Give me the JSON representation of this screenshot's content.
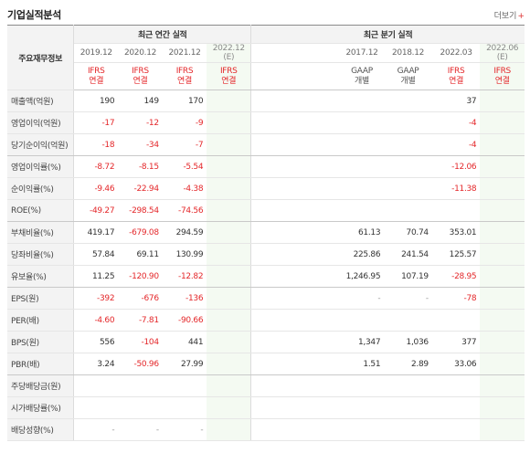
{
  "section_title": "기업실적분석",
  "more_link": "더보기",
  "more_icon": "+",
  "header": {
    "row_label": "주요재무정보",
    "annual_group": "최근 연간 실적",
    "quarter_group": "최근 분기 실적",
    "periods": [
      {
        "date": "2019.12",
        "est": "",
        "std": "IFRS",
        "basis": "연결",
        "std_kind": "ifrs"
      },
      {
        "date": "2020.12",
        "est": "",
        "std": "IFRS",
        "basis": "연결",
        "std_kind": "ifrs"
      },
      {
        "date": "2021.12",
        "est": "",
        "std": "IFRS",
        "basis": "연결",
        "std_kind": "ifrs"
      },
      {
        "date": "2022.12",
        "est": "(E)",
        "std": "IFRS",
        "basis": "연결",
        "std_kind": "ifrs"
      },
      {
        "date": "",
        "est": "",
        "std": "",
        "basis": "",
        "std_kind": ""
      },
      {
        "date": "",
        "est": "",
        "std": "",
        "basis": "",
        "std_kind": ""
      },
      {
        "date": "2017.12",
        "est": "",
        "std": "GAAP",
        "basis": "개별",
        "std_kind": "gaap"
      },
      {
        "date": "2018.12",
        "est": "",
        "std": "GAAP",
        "basis": "개별",
        "std_kind": "gaap"
      },
      {
        "date": "2022.03",
        "est": "",
        "std": "IFRS",
        "basis": "연결",
        "std_kind": "ifrs"
      },
      {
        "date": "2022.06",
        "est": "(E)",
        "std": "IFRS",
        "basis": "연결",
        "std_kind": "ifrs"
      }
    ]
  },
  "rows": [
    {
      "label": "매출액(억원)",
      "values": [
        "190",
        "149",
        "170",
        "",
        "",
        "",
        "",
        "",
        "37",
        ""
      ]
    },
    {
      "label": "영업이익(억원)",
      "values": [
        "-17",
        "-12",
        "-9",
        "",
        "",
        "",
        "",
        "",
        "-4",
        ""
      ]
    },
    {
      "label": "당기순이익(억원)",
      "values": [
        "-18",
        "-34",
        "-7",
        "",
        "",
        "",
        "",
        "",
        "-4",
        ""
      ]
    },
    {
      "label": "영업이익률(%)",
      "values": [
        "-8.72",
        "-8.15",
        "-5.54",
        "",
        "",
        "",
        "",
        "",
        "-12.06",
        ""
      ]
    },
    {
      "label": "순이익률(%)",
      "values": [
        "-9.46",
        "-22.94",
        "-4.38",
        "",
        "",
        "",
        "",
        "",
        "-11.38",
        ""
      ]
    },
    {
      "label": "ROE(%)",
      "values": [
        "-49.27",
        "-298.54",
        "-74.56",
        "",
        "",
        "",
        "",
        "",
        "",
        ""
      ]
    },
    {
      "label": "부채비율(%)",
      "values": [
        "419.17",
        "-679.08",
        "294.59",
        "",
        "",
        "",
        "61.13",
        "70.74",
        "353.01",
        ""
      ]
    },
    {
      "label": "당좌비율(%)",
      "values": [
        "57.84",
        "69.11",
        "130.99",
        "",
        "",
        "",
        "225.86",
        "241.54",
        "125.57",
        ""
      ]
    },
    {
      "label": "유보율(%)",
      "values": [
        "11.25",
        "-120.90",
        "-12.82",
        "",
        "",
        "",
        "1,246.95",
        "107.19",
        "-28.95",
        ""
      ]
    },
    {
      "label": "EPS(원)",
      "values": [
        "-392",
        "-676",
        "-136",
        "",
        "",
        "",
        "-",
        "-",
        "-78",
        ""
      ]
    },
    {
      "label": "PER(배)",
      "values": [
        "-4.60",
        "-7.81",
        "-90.66",
        "",
        "",
        "",
        "",
        "",
        "",
        ""
      ]
    },
    {
      "label": "BPS(원)",
      "values": [
        "556",
        "-104",
        "441",
        "",
        "",
        "",
        "1,347",
        "1,036",
        "377",
        ""
      ]
    },
    {
      "label": "PBR(배)",
      "values": [
        "3.24",
        "-50.96",
        "27.99",
        "",
        "",
        "",
        "1.51",
        "2.89",
        "33.06",
        ""
      ]
    },
    {
      "label": "주당배당금(원)",
      "values": [
        "",
        "",
        "",
        "",
        "",
        "",
        "",
        "",
        "",
        ""
      ]
    },
    {
      "label": "시가배당률(%)",
      "values": [
        "",
        "",
        "",
        "",
        "",
        "",
        "",
        "",
        "",
        ""
      ]
    },
    {
      "label": "배당성향(%)",
      "values": [
        "-",
        "-",
        "-",
        "",
        "",
        "",
        "",
        "",
        "",
        ""
      ]
    }
  ],
  "colors": {
    "negative": "#e4272a",
    "ifrs": "#e4272a",
    "estimate_bg": "#f4faf2"
  }
}
